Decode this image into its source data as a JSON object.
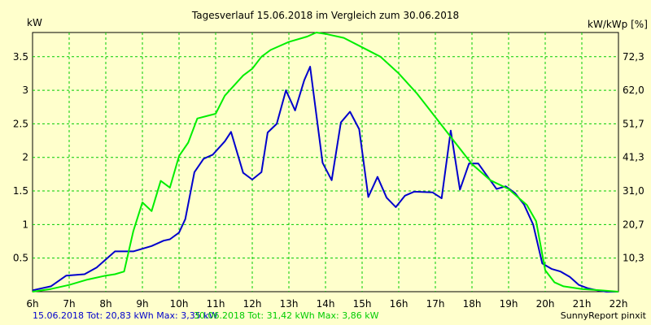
{
  "chart_data": {
    "type": "line",
    "title": "Tagesverlauf 15.06.2018 im Vergleich zum 30.06.2018",
    "ylabel_left": "kW",
    "ylabel_right": "kW/kWp [%]",
    "x_ticks": [
      "6h",
      "7h",
      "8h",
      "9h",
      "10h",
      "11h",
      "12h",
      "13h",
      "14h",
      "15h",
      "16h",
      "17h",
      "18h",
      "19h",
      "20h",
      "21h",
      "22h"
    ],
    "xlim": [
      6,
      22
    ],
    "ylim": [
      0,
      3.86
    ],
    "y_ticks_left": [
      {
        "value": 0.5,
        "label": "0.5"
      },
      {
        "value": 1,
        "label": "1"
      },
      {
        "value": 1.5,
        "label": "1.5"
      },
      {
        "value": 2,
        "label": "2"
      },
      {
        "value": 2.5,
        "label": "2.5"
      },
      {
        "value": 3,
        "label": "3"
      },
      {
        "value": 3.5,
        "label": "3.5"
      }
    ],
    "y_ticks_right": [
      {
        "value": 0.5,
        "label": "10,3"
      },
      {
        "value": 1,
        "label": "20,7"
      },
      {
        "value": 1.5,
        "label": "31,0"
      },
      {
        "value": 2,
        "label": "41,3"
      },
      {
        "value": 2.5,
        "label": "51,7"
      },
      {
        "value": 3,
        "label": "62,0"
      },
      {
        "value": 3.5,
        "label": "72,3"
      }
    ],
    "grid": true,
    "series": [
      {
        "color": "#0000cc",
        "points": [
          [
            6.0,
            0.02
          ],
          [
            6.5,
            0.08
          ],
          [
            6.92,
            0.24
          ],
          [
            7.42,
            0.26
          ],
          [
            7.75,
            0.36
          ],
          [
            8.25,
            0.6
          ],
          [
            8.75,
            0.6
          ],
          [
            9.25,
            0.68
          ],
          [
            9.58,
            0.76
          ],
          [
            9.75,
            0.78
          ],
          [
            10.0,
            0.88
          ],
          [
            10.17,
            1.08
          ],
          [
            10.42,
            1.78
          ],
          [
            10.67,
            1.98
          ],
          [
            10.92,
            2.04
          ],
          [
            11.25,
            2.24
          ],
          [
            11.42,
            2.38
          ],
          [
            11.75,
            1.77
          ],
          [
            12.0,
            1.67
          ],
          [
            12.25,
            1.78
          ],
          [
            12.42,
            2.37
          ],
          [
            12.67,
            2.5
          ],
          [
            12.92,
            3.0
          ],
          [
            13.17,
            2.7
          ],
          [
            13.42,
            3.15
          ],
          [
            13.58,
            3.35
          ],
          [
            13.92,
            1.92
          ],
          [
            14.17,
            1.66
          ],
          [
            14.42,
            2.52
          ],
          [
            14.67,
            2.68
          ],
          [
            14.92,
            2.42
          ],
          [
            15.17,
            1.41
          ],
          [
            15.42,
            1.71
          ],
          [
            15.67,
            1.4
          ],
          [
            15.92,
            1.26
          ],
          [
            16.17,
            1.43
          ],
          [
            16.42,
            1.49
          ],
          [
            16.92,
            1.48
          ],
          [
            17.17,
            1.39
          ],
          [
            17.42,
            2.4
          ],
          [
            17.67,
            1.52
          ],
          [
            17.92,
            1.91
          ],
          [
            18.17,
            1.91
          ],
          [
            18.42,
            1.72
          ],
          [
            18.67,
            1.53
          ],
          [
            18.92,
            1.57
          ],
          [
            19.17,
            1.47
          ],
          [
            19.42,
            1.3
          ],
          [
            19.67,
            1.0
          ],
          [
            19.92,
            0.42
          ],
          [
            20.17,
            0.34
          ],
          [
            20.42,
            0.3
          ],
          [
            20.67,
            0.22
          ],
          [
            20.92,
            0.1
          ],
          [
            21.17,
            0.05
          ],
          [
            21.42,
            0.02
          ],
          [
            21.67,
            0.0
          ],
          [
            22.0,
            0.0
          ]
        ]
      },
      {
        "color": "#00ee00",
        "points": [
          [
            6.0,
            0.0
          ],
          [
            6.5,
            0.04
          ],
          [
            7.0,
            0.1
          ],
          [
            7.5,
            0.18
          ],
          [
            8.0,
            0.24
          ],
          [
            8.25,
            0.26
          ],
          [
            8.5,
            0.3
          ],
          [
            8.75,
            0.9
          ],
          [
            9.0,
            1.33
          ],
          [
            9.25,
            1.2
          ],
          [
            9.5,
            1.65
          ],
          [
            9.75,
            1.55
          ],
          [
            10.0,
            2.02
          ],
          [
            10.25,
            2.22
          ],
          [
            10.5,
            2.58
          ],
          [
            11.0,
            2.65
          ],
          [
            11.25,
            2.92
          ],
          [
            11.75,
            3.22
          ],
          [
            12.0,
            3.32
          ],
          [
            12.25,
            3.5
          ],
          [
            12.5,
            3.6
          ],
          [
            12.75,
            3.66
          ],
          [
            13.0,
            3.72
          ],
          [
            13.5,
            3.8
          ],
          [
            13.75,
            3.86
          ],
          [
            14.0,
            3.84
          ],
          [
            14.5,
            3.78
          ],
          [
            15.0,
            3.64
          ],
          [
            15.5,
            3.5
          ],
          [
            16.0,
            3.25
          ],
          [
            16.5,
            2.95
          ],
          [
            17.0,
            2.6
          ],
          [
            17.5,
            2.25
          ],
          [
            18.0,
            1.9
          ],
          [
            18.5,
            1.66
          ],
          [
            19.0,
            1.53
          ],
          [
            19.5,
            1.29
          ],
          [
            19.75,
            1.05
          ],
          [
            20.0,
            0.32
          ],
          [
            20.25,
            0.14
          ],
          [
            20.5,
            0.08
          ],
          [
            21.0,
            0.04
          ],
          [
            21.5,
            0.02
          ],
          [
            22.0,
            0.0
          ]
        ]
      }
    ]
  },
  "footer": {
    "series1_text": "15.06.2018 Tot: 20,83 kWh Max: 3,35 kW",
    "series2_text": "30.06.2018 Tot: 31,42 kWh Max: 3,86 kW",
    "credit": "SunnyReport pinxit"
  }
}
